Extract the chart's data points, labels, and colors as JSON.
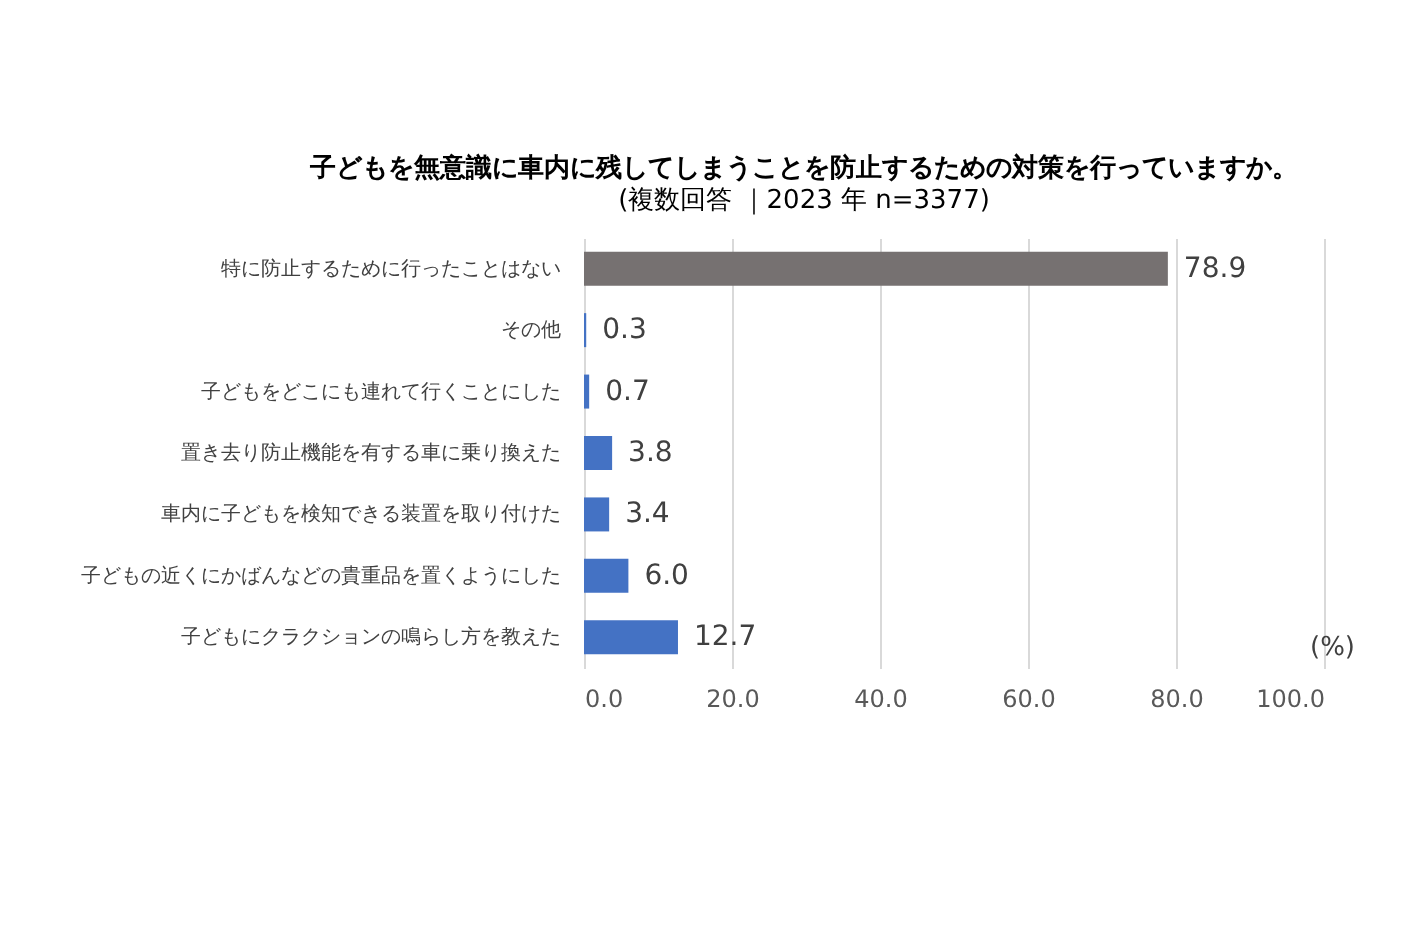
{
  "chart_data": {
    "type": "bar",
    "orientation": "horizontal",
    "title": "子どもを無意識に車内に残してしまうことを防止するための対策を行っていますか。",
    "subtitle": "(複数回答 ｜2023 年 n=3377)",
    "xlabel": "(%)",
    "categories": [
      "特に防止するために行ったことはない",
      "その他",
      "子どもをどこにも連れて行くことにした",
      "置き去り防止機能を有する車に乗り換えた",
      "車内に子どもを検知できる装置を取り付けた",
      "子どもの近くにかばんなどの貴重品を置くようにした",
      "子どもにクラクションの鳴らし方を教えた"
    ],
    "values": [
      78.9,
      0.3,
      0.7,
      3.8,
      3.4,
      6.0,
      12.7
    ],
    "value_labels": [
      "78.9",
      "0.3",
      "0.7",
      "3.8",
      "3.4",
      "6.0",
      "12.7"
    ],
    "colors": [
      "#767171",
      "#4472c4",
      "#4472c4",
      "#4472c4",
      "#4472c4",
      "#4472c4",
      "#4472c4"
    ],
    "xlim": [
      0,
      100
    ],
    "xticks": [
      {
        "value": 0,
        "label": "0.0"
      },
      {
        "value": 20,
        "label": "20.0"
      },
      {
        "value": 40,
        "label": "40.0"
      },
      {
        "value": 60,
        "label": "60.0"
      },
      {
        "value": 80,
        "label": "80.0"
      },
      {
        "value": 100,
        "label": "100.0"
      }
    ],
    "grid": "x"
  }
}
